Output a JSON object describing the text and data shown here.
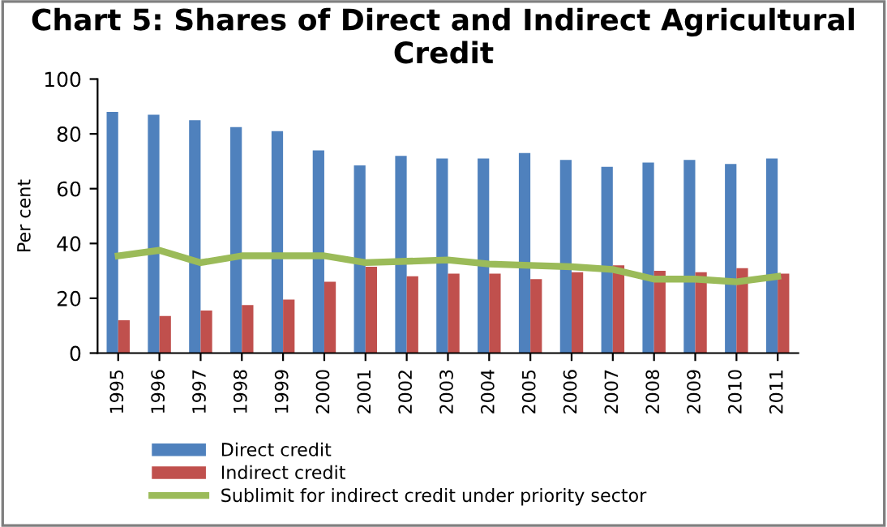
{
  "chart_data": {
    "type": "bar",
    "title": "Chart 5: Shares of Direct and Indirect Agricultural Credit",
    "ylabel": "Per cent",
    "categories": [
      "1995",
      "1996",
      "1997",
      "1998",
      "1999",
      "2000",
      "2001",
      "2002",
      "2003",
      "2004",
      "2005",
      "2006",
      "2007",
      "2008",
      "2009",
      "2010",
      "2011"
    ],
    "series": [
      {
        "name": "Direct credit",
        "color": "#4f81bd",
        "values": [
          88,
          87,
          85,
          82.5,
          81,
          74,
          68.5,
          72,
          71,
          71,
          73,
          70.5,
          68,
          69.5,
          70.5,
          69,
          71
        ]
      },
      {
        "name": "Indirect credit",
        "color": "#c0504d",
        "values": [
          12,
          13.5,
          15.5,
          17.5,
          19.5,
          26,
          31.5,
          28,
          29,
          29,
          27,
          29.5,
          32,
          30,
          29.5,
          31,
          29
        ]
      },
      {
        "name": "Sublimit for indirect credit under priority sector",
        "type": "line",
        "color": "#9bbb59",
        "values": [
          35.5,
          37.5,
          33,
          35.5,
          35.5,
          35.5,
          33,
          33.5,
          34,
          32.5,
          32,
          31.5,
          30.5,
          27,
          27,
          26,
          28
        ]
      }
    ],
    "ylim": [
      0,
      100
    ],
    "yticks": [
      0,
      20,
      40,
      60,
      80,
      100
    ],
    "grid": false,
    "legend": "bottom"
  }
}
